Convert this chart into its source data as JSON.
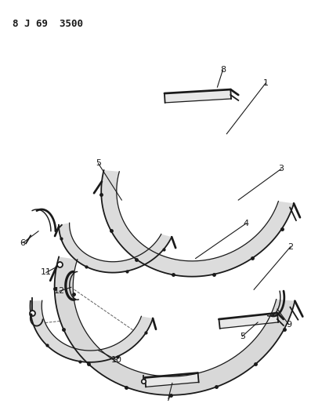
{
  "title": "8 J 69  3500",
  "background_color": "#ffffff",
  "line_color": "#1a1a1a",
  "figsize": [
    3.97,
    5.33
  ],
  "dpi": 100
}
